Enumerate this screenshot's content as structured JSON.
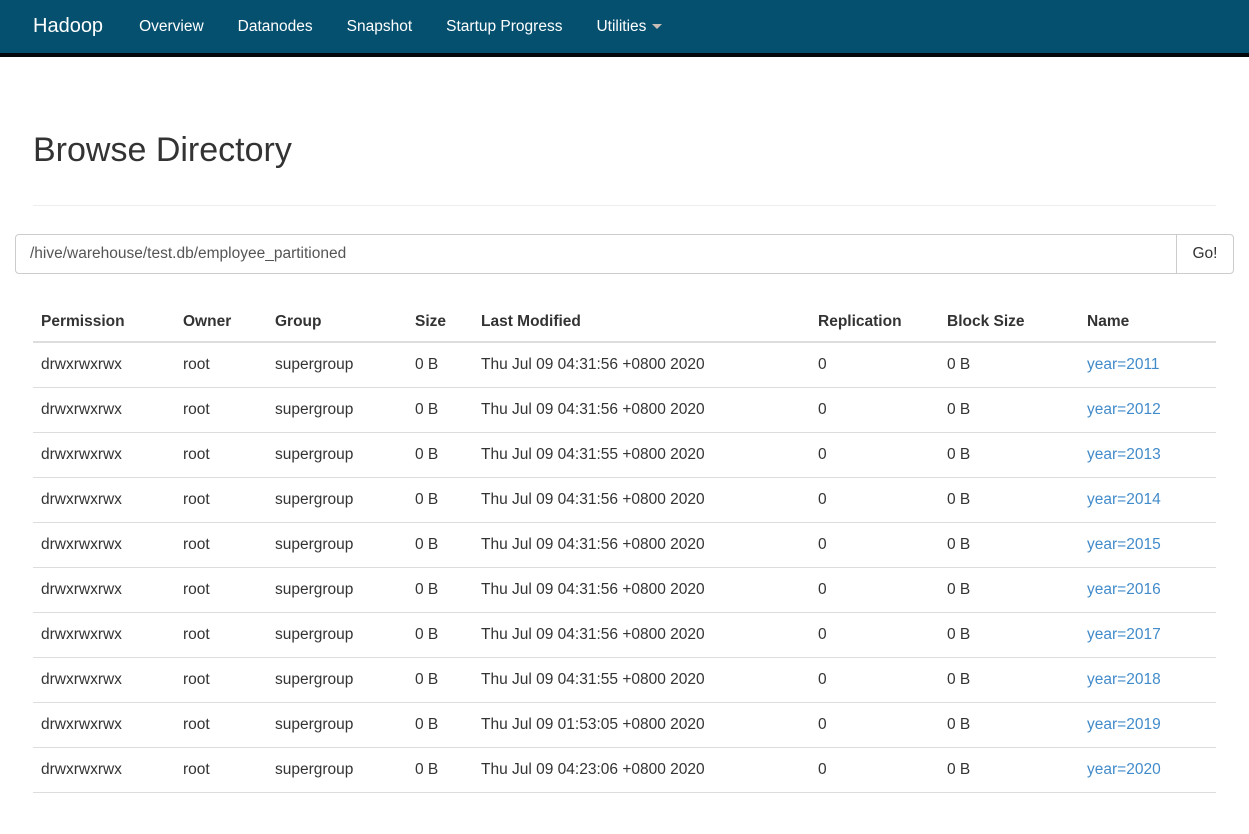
{
  "theme": {
    "navbar_bg": "#05506f",
    "navbar_border": "#05090d",
    "link_color": "#428bca"
  },
  "navbar": {
    "brand": "Hadoop",
    "items": [
      {
        "label": "Overview",
        "has_caret": false
      },
      {
        "label": "Datanodes",
        "has_caret": false
      },
      {
        "label": "Snapshot",
        "has_caret": false
      },
      {
        "label": "Startup Progress",
        "has_caret": false
      },
      {
        "label": "Utilities",
        "has_caret": true
      }
    ]
  },
  "page": {
    "title": "Browse Directory"
  },
  "path_bar": {
    "value": "/hive/warehouse/test.db/employee_partitioned",
    "go_label": "Go!"
  },
  "table": {
    "headers": [
      "Permission",
      "Owner",
      "Group",
      "Size",
      "Last Modified",
      "Replication",
      "Block Size",
      "Name"
    ],
    "rows": [
      {
        "permission": "drwxrwxrwx",
        "owner": "root",
        "group": "supergroup",
        "size": "0 B",
        "last_modified": "Thu Jul 09 04:31:56 +0800 2020",
        "replication": "0",
        "block_size": "0 B",
        "name": "year=2011"
      },
      {
        "permission": "drwxrwxrwx",
        "owner": "root",
        "group": "supergroup",
        "size": "0 B",
        "last_modified": "Thu Jul 09 04:31:56 +0800 2020",
        "replication": "0",
        "block_size": "0 B",
        "name": "year=2012"
      },
      {
        "permission": "drwxrwxrwx",
        "owner": "root",
        "group": "supergroup",
        "size": "0 B",
        "last_modified": "Thu Jul 09 04:31:55 +0800 2020",
        "replication": "0",
        "block_size": "0 B",
        "name": "year=2013"
      },
      {
        "permission": "drwxrwxrwx",
        "owner": "root",
        "group": "supergroup",
        "size": "0 B",
        "last_modified": "Thu Jul 09 04:31:56 +0800 2020",
        "replication": "0",
        "block_size": "0 B",
        "name": "year=2014"
      },
      {
        "permission": "drwxrwxrwx",
        "owner": "root",
        "group": "supergroup",
        "size": "0 B",
        "last_modified": "Thu Jul 09 04:31:56 +0800 2020",
        "replication": "0",
        "block_size": "0 B",
        "name": "year=2015"
      },
      {
        "permission": "drwxrwxrwx",
        "owner": "root",
        "group": "supergroup",
        "size": "0 B",
        "last_modified": "Thu Jul 09 04:31:56 +0800 2020",
        "replication": "0",
        "block_size": "0 B",
        "name": "year=2016"
      },
      {
        "permission": "drwxrwxrwx",
        "owner": "root",
        "group": "supergroup",
        "size": "0 B",
        "last_modified": "Thu Jul 09 04:31:56 +0800 2020",
        "replication": "0",
        "block_size": "0 B",
        "name": "year=2017"
      },
      {
        "permission": "drwxrwxrwx",
        "owner": "root",
        "group": "supergroup",
        "size": "0 B",
        "last_modified": "Thu Jul 09 04:31:55 +0800 2020",
        "replication": "0",
        "block_size": "0 B",
        "name": "year=2018"
      },
      {
        "permission": "drwxrwxrwx",
        "owner": "root",
        "group": "supergroup",
        "size": "0 B",
        "last_modified": "Thu Jul 09 01:53:05 +0800 2020",
        "replication": "0",
        "block_size": "0 B",
        "name": "year=2019"
      },
      {
        "permission": "drwxrwxrwx",
        "owner": "root",
        "group": "supergroup",
        "size": "0 B",
        "last_modified": "Thu Jul 09 04:23:06 +0800 2020",
        "replication": "0",
        "block_size": "0 B",
        "name": "year=2020"
      }
    ]
  }
}
